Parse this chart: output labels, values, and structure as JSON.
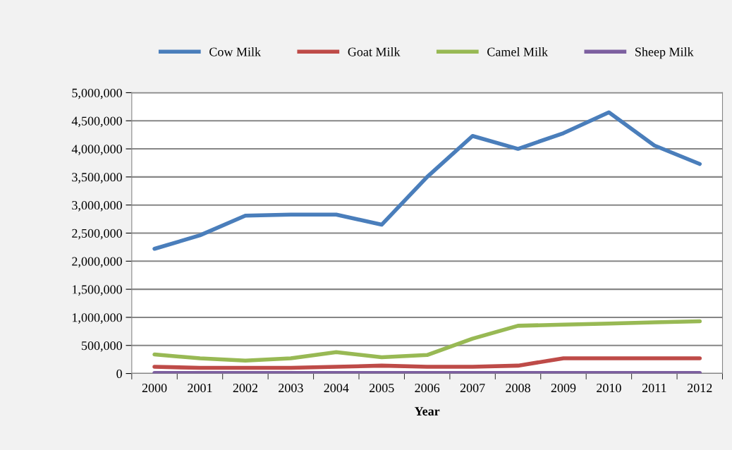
{
  "chart_data": {
    "type": "line",
    "xlabel": "Year",
    "categories": [
      "2000",
      "2001",
      "2002",
      "2003",
      "2004",
      "2005",
      "2006",
      "2007",
      "2008",
      "2009",
      "2010",
      "2011",
      "2012"
    ],
    "series": [
      {
        "name": "Cow Milk",
        "color": "#4a7ebb",
        "values": [
          2220000,
          2460000,
          2810000,
          2830000,
          2830000,
          2650000,
          3500000,
          4230000,
          4000000,
          4280000,
          4650000,
          4060000,
          3730000
        ]
      },
      {
        "name": "Goat Milk",
        "color": "#be4b48",
        "values": [
          120000,
          100000,
          100000,
          100000,
          120000,
          140000,
          120000,
          120000,
          140000,
          270000,
          270000,
          270000,
          270000
        ]
      },
      {
        "name": "Camel Milk",
        "color": "#98b954",
        "values": [
          340000,
          270000,
          230000,
          270000,
          380000,
          290000,
          330000,
          620000,
          850000,
          870000,
          890000,
          910000,
          930000
        ]
      },
      {
        "name": "Sheep Milk",
        "color": "#7d60a0",
        "values": [
          10000,
          10000,
          10000,
          10000,
          10000,
          10000,
          10000,
          10000,
          10000,
          10000,
          10000,
          10000,
          10000
        ]
      }
    ],
    "ylim": [
      0,
      5000000
    ],
    "yticks": [
      {
        "value": 0,
        "label": "0"
      },
      {
        "value": 500000,
        "label": "500,000"
      },
      {
        "value": 1000000,
        "label": "1,000,000"
      },
      {
        "value": 1500000,
        "label": "1,500,000"
      },
      {
        "value": 2000000,
        "label": "2,000,000"
      },
      {
        "value": 2500000,
        "label": "2,500,000"
      },
      {
        "value": 3000000,
        "label": "3,000,000"
      },
      {
        "value": 3500000,
        "label": "3,500,000"
      },
      {
        "value": 4000000,
        "label": "4,000,000"
      },
      {
        "value": 4500000,
        "label": "4,500,000"
      },
      {
        "value": 5000000,
        "label": "5,000,000"
      }
    ],
    "grid": "y",
    "legend": "top",
    "marker": "none",
    "line_style": "solid"
  }
}
